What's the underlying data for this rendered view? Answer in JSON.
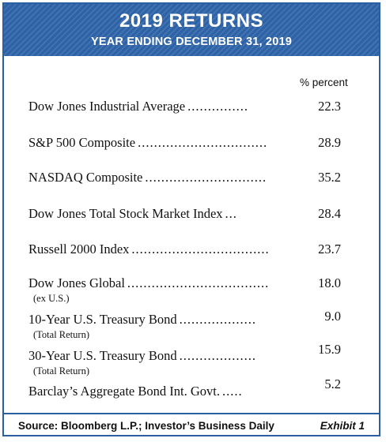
{
  "header": {
    "title": "2019 RETURNS",
    "subtitle": "YEAR ENDING DECEMBER 31, 2019"
  },
  "column_header": "% percent",
  "footer": {
    "source": "Source: Bloomberg L.P.; Investor’s Business Daily",
    "exhibit": "Exhibit 1"
  },
  "colors": {
    "header_blue": "#2d62a6",
    "border_blue": "#2a5fa3"
  },
  "chart_data": {
    "type": "table",
    "title": "2019 RETURNS",
    "subtitle": "YEAR ENDING DECEMBER 31, 2019",
    "columns": [
      "",
      "% percent"
    ],
    "rows": [
      {
        "name": "Dow Jones Industrial Average",
        "leader": "...............",
        "note": "",
        "value": "22.3"
      },
      {
        "name": "S&P 500 Composite",
        "leader": "................................",
        "note": "",
        "value": "28.9"
      },
      {
        "name": "NASDAQ Composite",
        "leader": "..............................",
        "note": "",
        "value": "35.2"
      },
      {
        "name": "Dow Jones Total Stock Market Index",
        "leader": "...",
        "note": "",
        "value": "28.4"
      },
      {
        "name": "Russell 2000 Index",
        "leader": "..................................",
        "note": "",
        "value": "23.7"
      },
      {
        "name": "Dow Jones Global",
        "leader": "...................................",
        "note": "(ex U.S.)",
        "value": "18.0"
      },
      {
        "name": "10-Year U.S. Treasury Bond",
        "leader": "...................",
        "note": "(Total Return)",
        "value": "9.0"
      },
      {
        "name": "30-Year U.S. Treasury Bond",
        "leader": "...................",
        "note": "(Total Return)",
        "value": "15.9"
      },
      {
        "name": "Barclay’s Aggregate Bond Int. Govt.",
        "leader": ".....",
        "note": "",
        "value": "5.2"
      }
    ],
    "source": "Source: Bloomberg L.P.; Investor’s Business Daily"
  }
}
